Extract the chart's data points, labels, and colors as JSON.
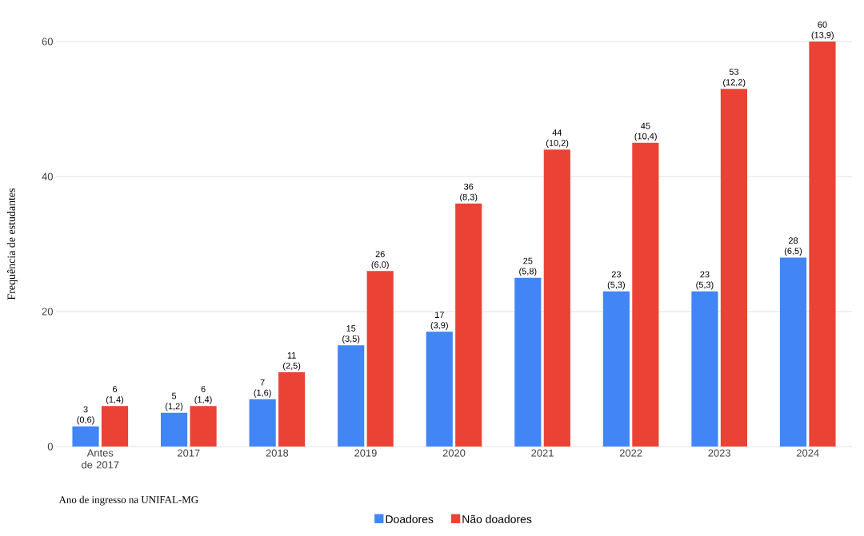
{
  "chart_data": {
    "type": "bar",
    "xlabel": "Ano de ingresso na UNIFAL-MG",
    "ylabel": "Frequência de estudantes",
    "categories": [
      "Antes de 2017",
      "2017",
      "2018",
      "2019",
      "2020",
      "2021",
      "2022",
      "2023",
      "2024"
    ],
    "series": [
      {
        "name": "Doadores",
        "color": "#4285f4",
        "values": [
          3,
          5,
          7,
          15,
          17,
          25,
          23,
          23,
          28
        ],
        "value_labels": [
          "3 (0,6)",
          "5 (1,2)",
          "7 (1,6)",
          "15 (3,5)",
          "17 (3,9)",
          "25 (5,8)",
          "23 (5,3)",
          "23 (5,3)",
          "28 (6,5)"
        ]
      },
      {
        "name": "Não doadores",
        "color": "#ea4335",
        "values": [
          6,
          6,
          11,
          26,
          36,
          44,
          45,
          53,
          60
        ],
        "value_labels": [
          "6 (1,4)",
          "6 (1,4)",
          "11 (2,5)",
          "26 (6,0)",
          "36 (8,3)",
          "44 (10,2)",
          "45 (10,4)",
          "53 (12,2)",
          "60 (13,9)"
        ]
      }
    ],
    "ylim": [
      0,
      60
    ],
    "yticks": [
      0,
      20,
      40,
      60
    ],
    "grid": "y",
    "legend": "bottom"
  }
}
